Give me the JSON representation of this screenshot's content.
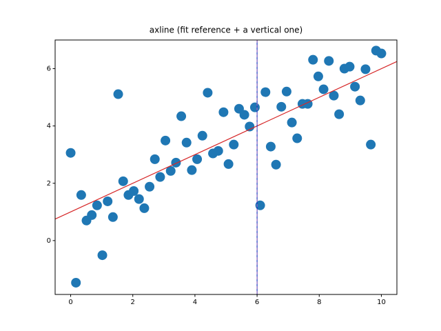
{
  "chart_data": {
    "type": "scatter",
    "title": "axline (fit reference + a vertical one)",
    "series": [
      {
        "color": "#1f77b4",
        "x": [
          0,
          0.17,
          0.34,
          0.51,
          0.68,
          0.85,
          1.02,
          1.19,
          1.36,
          1.53,
          1.69,
          1.86,
          2.03,
          2.2,
          2.37,
          2.54,
          2.71,
          2.88,
          3.05,
          3.22,
          3.39,
          3.56,
          3.73,
          3.9,
          4.07,
          4.24,
          4.41,
          4.58,
          4.75,
          4.92,
          5.08,
          5.25,
          5.42,
          5.59,
          5.76,
          5.93,
          6.1,
          6.27,
          6.44,
          6.61,
          6.78,
          6.95,
          7.12,
          7.29,
          7.46,
          7.63,
          7.8,
          7.97,
          8.14,
          8.31,
          8.47,
          8.64,
          8.81,
          8.98,
          9.15,
          9.32,
          9.49,
          9.66,
          9.83,
          10
        ],
        "values": [
          3.06,
          -1.47,
          1.59,
          0.7,
          0.89,
          1.23,
          -0.51,
          1.37,
          0.82,
          5.11,
          2.07,
          1.59,
          1.73,
          1.45,
          1.13,
          1.88,
          2.84,
          2.22,
          3.49,
          2.43,
          2.72,
          4.34,
          3.42,
          2.46,
          2.84,
          3.66,
          5.16,
          3.04,
          3.13,
          4.48,
          2.67,
          3.35,
          4.6,
          4.39,
          3.98,
          4.65,
          1.23,
          5.18,
          3.28,
          2.65,
          4.67,
          5.2,
          4.12,
          3.57,
          4.77,
          4.77,
          6.31,
          5.73,
          5.28,
          6.27,
          5.06,
          4.41,
          6.0,
          6.07,
          5.37,
          4.89,
          5.98,
          3.35,
          6.63,
          6.53
        ]
      }
    ],
    "reference_line": {
      "point": [
        0,
        1
      ],
      "slope": 0.5,
      "color": "#d62728"
    },
    "vertical_line": {
      "x": 6,
      "color": "#1f3fbf",
      "dash_color": "#9467bd"
    },
    "xlim": [
      -0.5,
      10.5
    ],
    "ylim": [
      -1.88,
      7.0
    ],
    "xticks": [
      0,
      2,
      4,
      6,
      8,
      10
    ],
    "yticks": [
      0,
      2,
      4,
      6
    ],
    "grid": false
  }
}
